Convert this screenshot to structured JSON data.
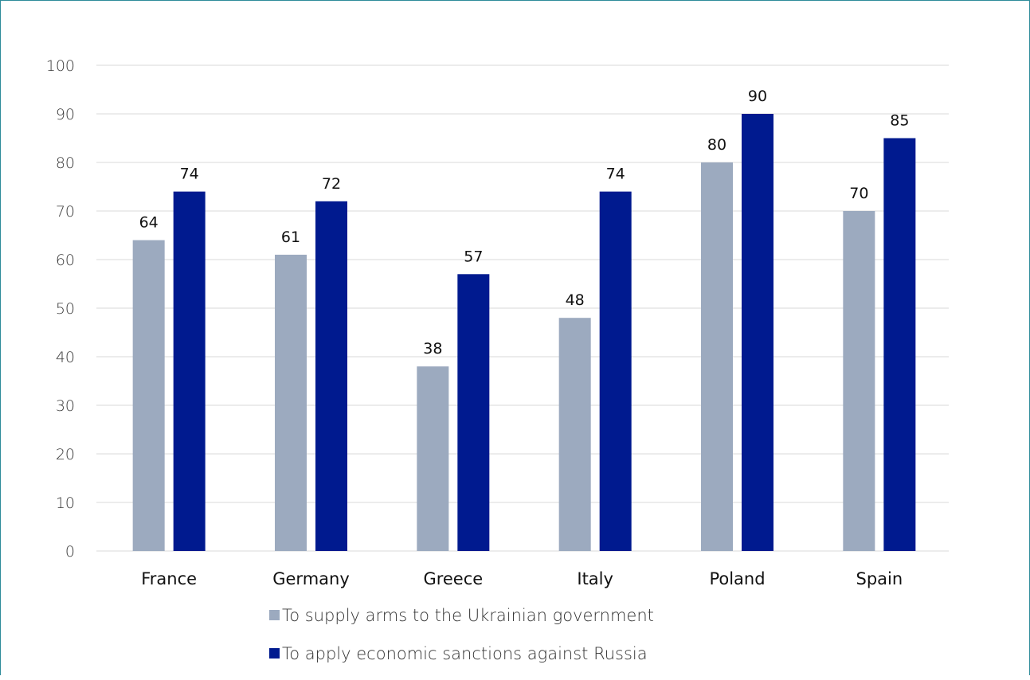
{
  "chart_data": {
    "type": "bar",
    "categories": [
      "France",
      "Germany",
      "Greece",
      "Italy",
      "Poland",
      "Spain"
    ],
    "series": [
      {
        "name": "To supply arms to the Ukrainian government",
        "values": [
          64,
          61,
          38,
          48,
          80,
          70
        ],
        "color": "#9caabf"
      },
      {
        "name": "To apply economic sanctions against Russia",
        "values": [
          74,
          72,
          57,
          74,
          90,
          85
        ],
        "color": "#001a8f"
      }
    ],
    "ylim": [
      0,
      100
    ],
    "yticks": [
      0,
      10,
      20,
      30,
      40,
      50,
      60,
      70,
      80,
      90,
      100
    ],
    "grid": true,
    "legend_position": "bottom",
    "data_labels": true
  },
  "colors": {
    "gridline": "#d9d9d9",
    "frame": "#2e8b9a"
  }
}
